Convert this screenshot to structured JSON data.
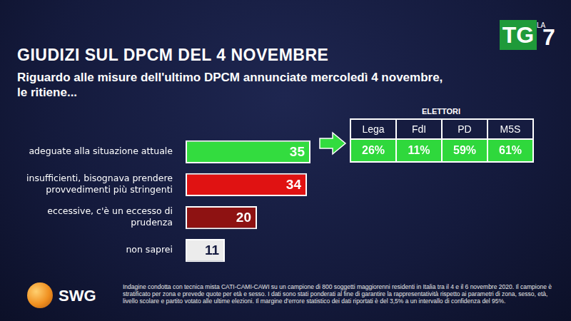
{
  "chart_data": {
    "type": "bar",
    "orientation": "horizontal",
    "title": "GIUDIZI SUL DPCM DEL 4 NOVEMBRE",
    "subtitle": [
      "Riguardo alle misure dell'ultimo DPCM annunciate mercoledì 4 novembre,",
      "le ritiene..."
    ],
    "categories": [
      [
        "adeguate alla situazione attuale"
      ],
      [
        "insufficienti, bisognava prendere",
        "provvedimenti più stringenti"
      ],
      [
        "eccessive, c'è un eccesso di",
        "prudenza"
      ],
      [
        "non saprei"
      ]
    ],
    "values": [
      35,
      34,
      20,
      11
    ],
    "colors": [
      "#33dc3f",
      "#e01212",
      "#8e1212",
      "#ececec"
    ],
    "xlim": [
      0,
      100
    ],
    "grid": false,
    "data_labels": true,
    "tick_labels": "y"
  },
  "voters_table": {
    "title": "ELETTORI",
    "columns": [
      "Lega",
      "FdI",
      "PD",
      "M5S"
    ],
    "cells": [
      "26%",
      "11%",
      "59%",
      "61%"
    ]
  },
  "logo": {
    "tg": "TG",
    "la": "LA",
    "number": "7"
  },
  "source": {
    "brand": "SWG",
    "note": "Indagine condotta con tecnica mista CATI-CAMI-CAWI su un campione di 800 soggetti maggiorenni residenti in Italia tra il 4 e il 6 novembre 2020. Il campione è stratificato per zona e prevede quote per età e sesso. I dati sono stati ponderati al fine di garantire la rappresentatività rispetto ai parametri di zona, sesso, età, livello scolare e partito votato alle ultime elezioni. Il margine d'errore statistico dei dati riportati è del 3,5% a un intervallo di confidenza del 95%."
  }
}
